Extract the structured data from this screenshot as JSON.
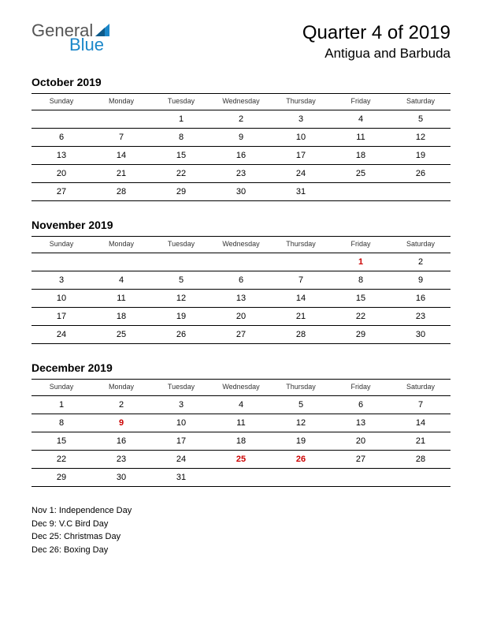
{
  "logo": {
    "word1": "General",
    "word2": "Blue",
    "word1_color": "#555555",
    "word2_color": "#1b87c9",
    "triangle_color": "#1b87c9"
  },
  "header": {
    "title": "Quarter 4 of 2019",
    "subtitle": "Antigua and Barbuda"
  },
  "day_headers": [
    "Sunday",
    "Monday",
    "Tuesday",
    "Wednesday",
    "Thursday",
    "Friday",
    "Saturday"
  ],
  "months": [
    {
      "title": "October 2019",
      "weeks": [
        [
          {
            "d": ""
          },
          {
            "d": ""
          },
          {
            "d": "1"
          },
          {
            "d": "2"
          },
          {
            "d": "3"
          },
          {
            "d": "4"
          },
          {
            "d": "5"
          }
        ],
        [
          {
            "d": "6"
          },
          {
            "d": "7"
          },
          {
            "d": "8"
          },
          {
            "d": "9"
          },
          {
            "d": "10"
          },
          {
            "d": "11"
          },
          {
            "d": "12"
          }
        ],
        [
          {
            "d": "13"
          },
          {
            "d": "14"
          },
          {
            "d": "15"
          },
          {
            "d": "16"
          },
          {
            "d": "17"
          },
          {
            "d": "18"
          },
          {
            "d": "19"
          }
        ],
        [
          {
            "d": "20"
          },
          {
            "d": "21"
          },
          {
            "d": "22"
          },
          {
            "d": "23"
          },
          {
            "d": "24"
          },
          {
            "d": "25"
          },
          {
            "d": "26"
          }
        ],
        [
          {
            "d": "27"
          },
          {
            "d": "28"
          },
          {
            "d": "29"
          },
          {
            "d": "30"
          },
          {
            "d": "31"
          },
          {
            "d": ""
          },
          {
            "d": ""
          }
        ]
      ]
    },
    {
      "title": "November 2019",
      "weeks": [
        [
          {
            "d": ""
          },
          {
            "d": ""
          },
          {
            "d": ""
          },
          {
            "d": ""
          },
          {
            "d": ""
          },
          {
            "d": "1",
            "h": true
          },
          {
            "d": "2"
          }
        ],
        [
          {
            "d": "3"
          },
          {
            "d": "4"
          },
          {
            "d": "5"
          },
          {
            "d": "6"
          },
          {
            "d": "7"
          },
          {
            "d": "8"
          },
          {
            "d": "9"
          }
        ],
        [
          {
            "d": "10"
          },
          {
            "d": "11"
          },
          {
            "d": "12"
          },
          {
            "d": "13"
          },
          {
            "d": "14"
          },
          {
            "d": "15"
          },
          {
            "d": "16"
          }
        ],
        [
          {
            "d": "17"
          },
          {
            "d": "18"
          },
          {
            "d": "19"
          },
          {
            "d": "20"
          },
          {
            "d": "21"
          },
          {
            "d": "22"
          },
          {
            "d": "23"
          }
        ],
        [
          {
            "d": "24"
          },
          {
            "d": "25"
          },
          {
            "d": "26"
          },
          {
            "d": "27"
          },
          {
            "d": "28"
          },
          {
            "d": "29"
          },
          {
            "d": "30"
          }
        ]
      ]
    },
    {
      "title": "December 2019",
      "weeks": [
        [
          {
            "d": "1"
          },
          {
            "d": "2"
          },
          {
            "d": "3"
          },
          {
            "d": "4"
          },
          {
            "d": "5"
          },
          {
            "d": "6"
          },
          {
            "d": "7"
          }
        ],
        [
          {
            "d": "8"
          },
          {
            "d": "9",
            "h": true
          },
          {
            "d": "10"
          },
          {
            "d": "11"
          },
          {
            "d": "12"
          },
          {
            "d": "13"
          },
          {
            "d": "14"
          }
        ],
        [
          {
            "d": "15"
          },
          {
            "d": "16"
          },
          {
            "d": "17"
          },
          {
            "d": "18"
          },
          {
            "d": "19"
          },
          {
            "d": "20"
          },
          {
            "d": "21"
          }
        ],
        [
          {
            "d": "22"
          },
          {
            "d": "23"
          },
          {
            "d": "24"
          },
          {
            "d": "25",
            "h": true
          },
          {
            "d": "26",
            "h": true
          },
          {
            "d": "27"
          },
          {
            "d": "28"
          }
        ],
        [
          {
            "d": "29"
          },
          {
            "d": "30"
          },
          {
            "d": "31"
          },
          {
            "d": ""
          },
          {
            "d": ""
          },
          {
            "d": ""
          },
          {
            "d": ""
          }
        ]
      ]
    }
  ],
  "holidays": [
    "Nov 1: Independence Day",
    "Dec 9: V.C Bird Day",
    "Dec 25: Christmas Day",
    "Dec 26: Boxing Day"
  ],
  "colors": {
    "holiday": "#cc0000",
    "text": "#000000",
    "border": "#000000"
  }
}
